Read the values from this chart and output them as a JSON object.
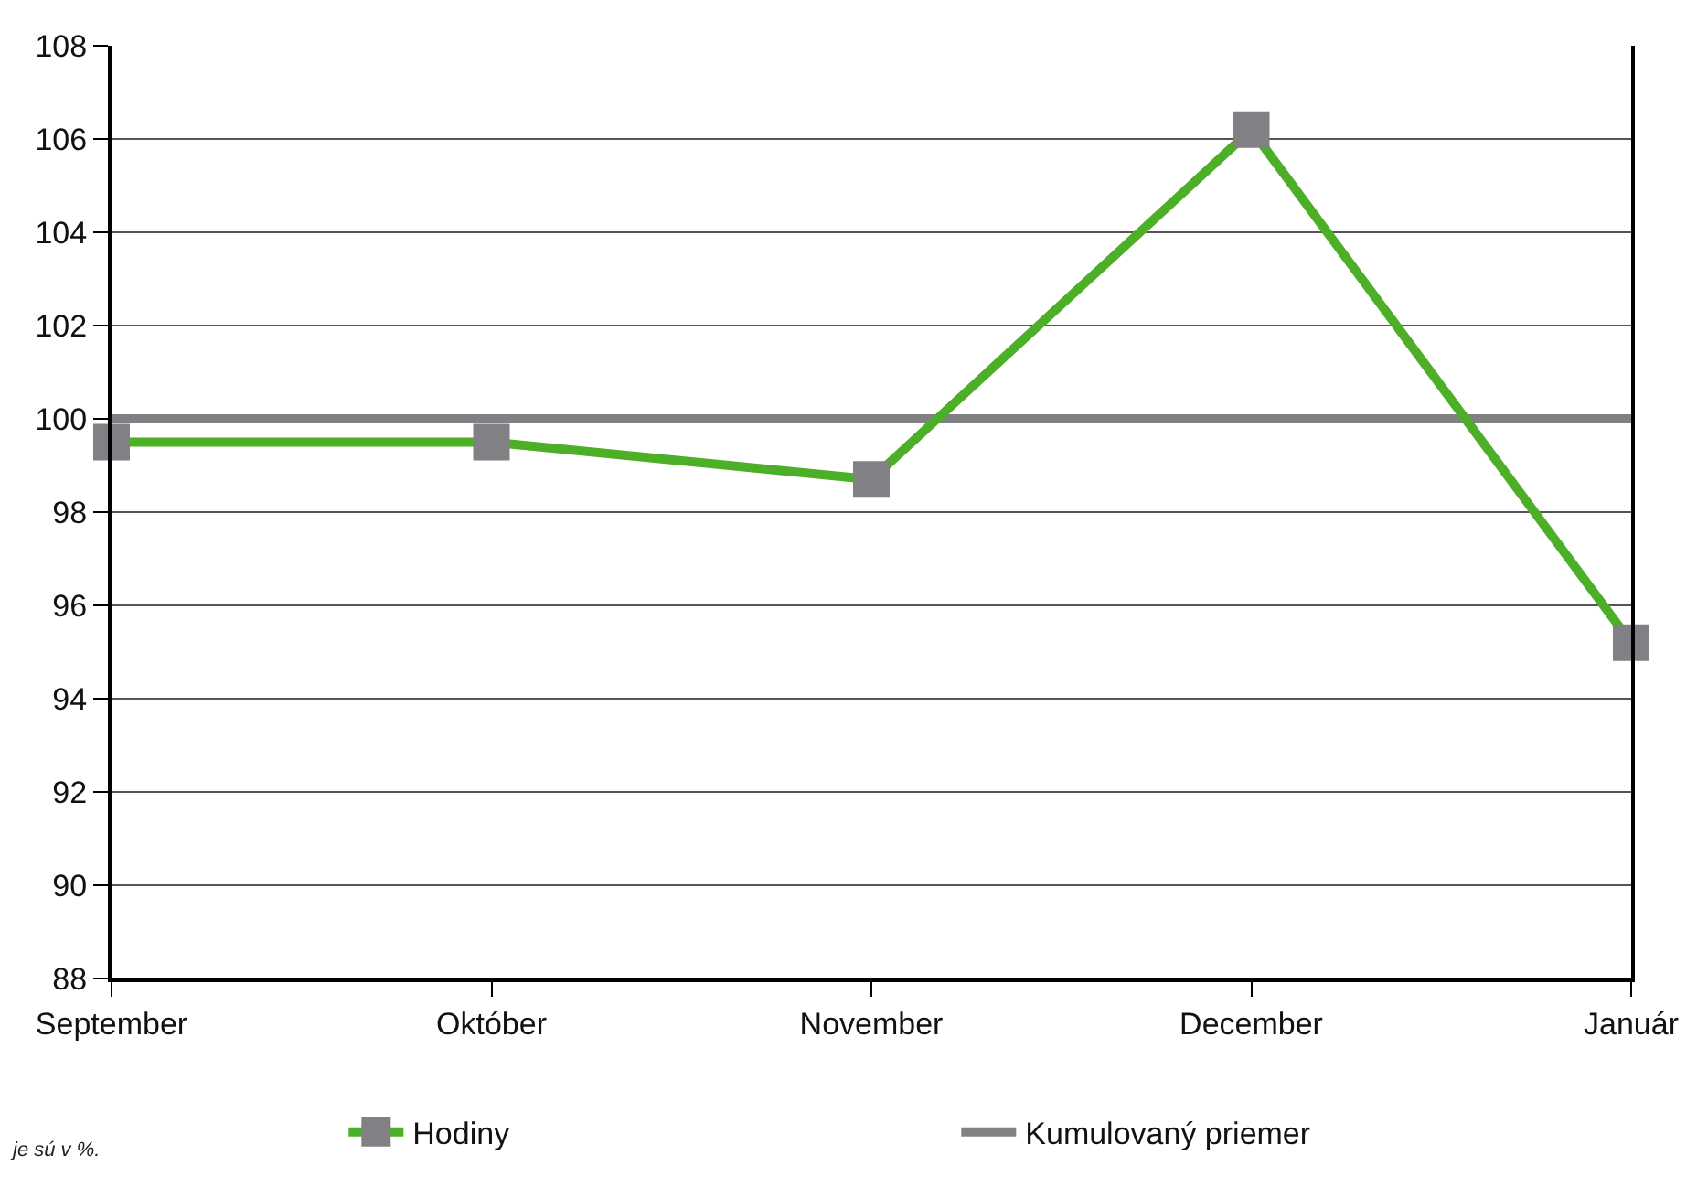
{
  "chart_data": {
    "type": "line",
    "categories": [
      "September",
      "Október",
      "November",
      "December",
      "Január"
    ],
    "series": [
      {
        "name": "Hodiny",
        "color": "#4caf27",
        "values": [
          99.5,
          99.5,
          98.7,
          106.2,
          95.2
        ]
      },
      {
        "name": "Kumulovaný priemer",
        "color": "#818085",
        "values": [
          100,
          100,
          100,
          100,
          100
        ],
        "marker": "none"
      }
    ],
    "ylim": [
      88,
      108
    ],
    "yticks": [
      88,
      90,
      92,
      94,
      96,
      98,
      100,
      102,
      104,
      106,
      108
    ],
    "grid": "y",
    "legend": "bottom",
    "marker": "square",
    "line_style": "solid",
    "annotations": [
      "je sú v %."
    ]
  }
}
